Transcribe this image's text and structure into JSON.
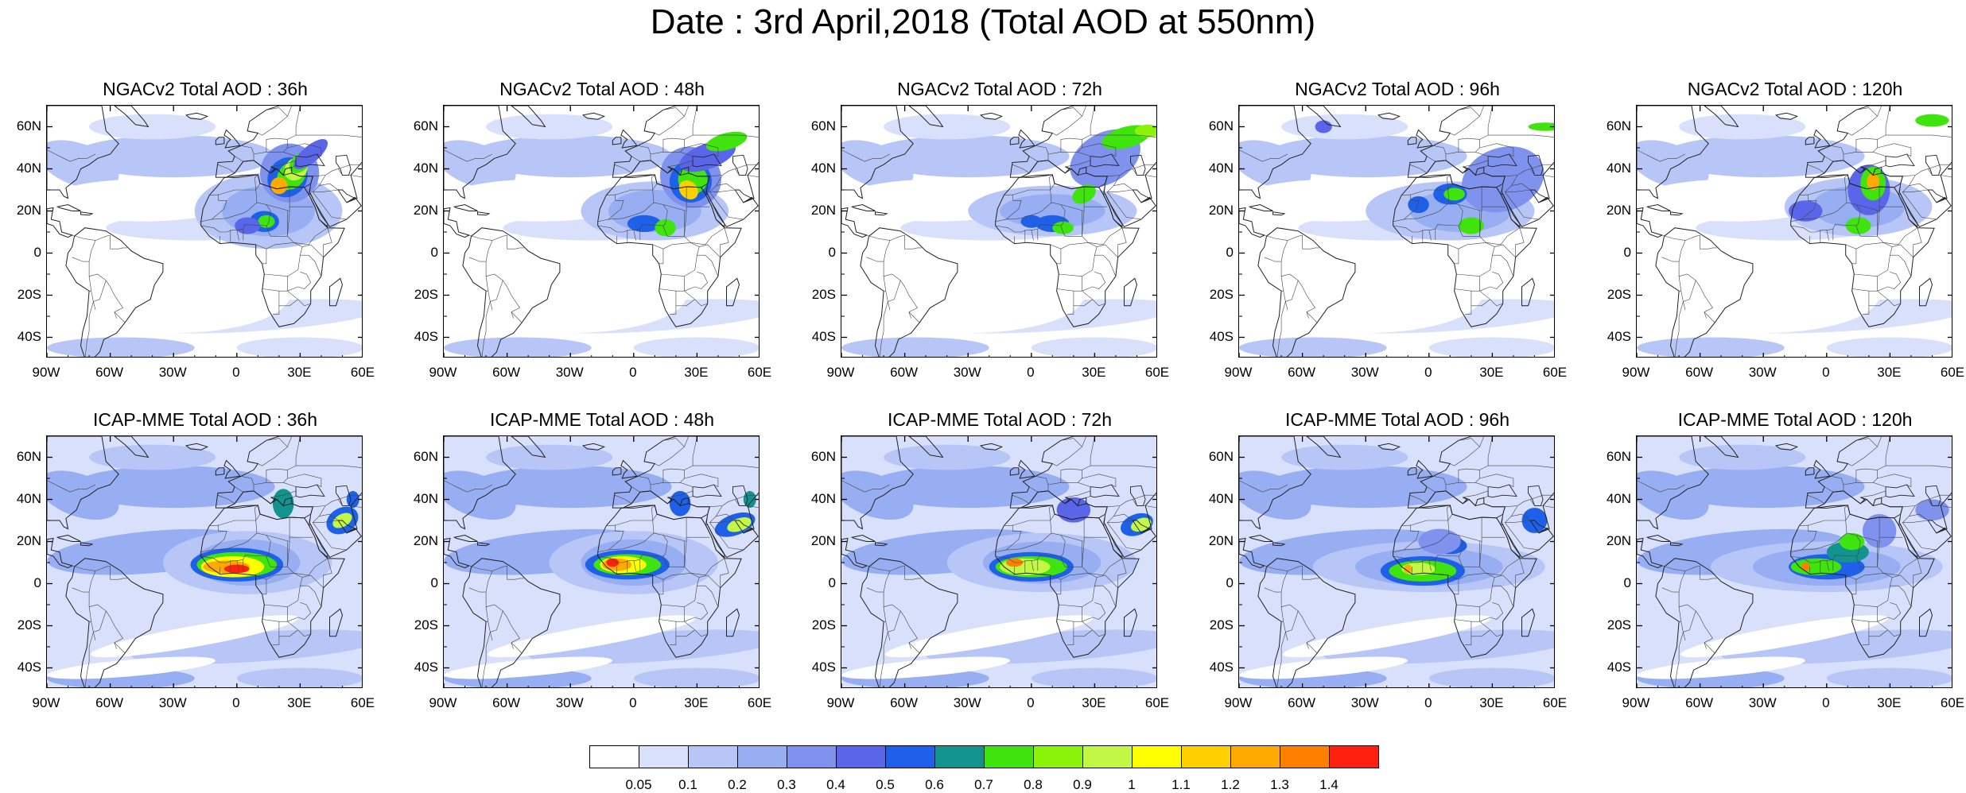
{
  "title": "Date : 3rd April,2018 (Total AOD at 550nm)",
  "rows": [
    {
      "model": "NGACv2",
      "panels": [
        {
          "label": "NGACv2 Total AOD : 36h",
          "lead": "36h"
        },
        {
          "label": "NGACv2 Total AOD : 48h",
          "lead": "48h"
        },
        {
          "label": "NGACv2 Total AOD : 72h",
          "lead": "72h"
        },
        {
          "label": "NGACv2 Total AOD : 96h",
          "lead": "96h"
        },
        {
          "label": "NGACv2 Total AOD : 120h",
          "lead": "120h"
        }
      ]
    },
    {
      "model": "ICAP-MME",
      "panels": [
        {
          "label": "ICAP-MME Total AOD : 36h",
          "lead": "36h"
        },
        {
          "label": "ICAP-MME Total AOD : 48h",
          "lead": "48h"
        },
        {
          "label": "ICAP-MME Total AOD : 72h",
          "lead": "72h"
        },
        {
          "label": "ICAP-MME Total AOD : 96h",
          "lead": "96h"
        },
        {
          "label": "ICAP-MME Total AOD : 120h",
          "lead": "120h"
        }
      ]
    }
  ],
  "axes": {
    "lat_labels": [
      "60N",
      "40N",
      "20N",
      "0",
      "20S",
      "40S"
    ],
    "lon_labels": [
      "90W",
      "60W",
      "30W",
      "0",
      "30E",
      "60E"
    ],
    "lat_range": [
      -50,
      70
    ],
    "lon_range": [
      -90,
      60
    ]
  },
  "colorbar": {
    "labels": [
      "0.05",
      "0.1",
      "0.2",
      "0.3",
      "0.4",
      "0.5",
      "0.6",
      "0.7",
      "0.8",
      "0.9",
      "1",
      "1.1",
      "1.2",
      "1.3",
      "1.4"
    ],
    "colors": [
      "#ffffff",
      "#d8e0fb",
      "#b7c6f6",
      "#98aef3",
      "#7e92ee",
      "#5a66e9",
      "#1f60e8",
      "#12938e",
      "#3fe30e",
      "#8bf20a",
      "#c3f745",
      "#ffff00",
      "#ffd000",
      "#ffaa00",
      "#ff7f00",
      "#ff2010"
    ]
  }
}
